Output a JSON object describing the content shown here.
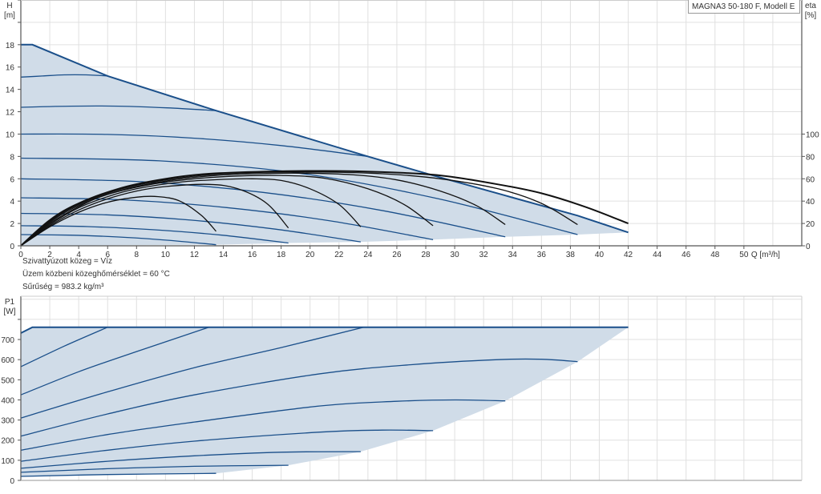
{
  "chart_data": [
    {
      "type": "line",
      "title": "MAGNA3 50-180 F, Modell E",
      "xlabel": "Q [m³/h]",
      "ylabel_top": "H",
      "ylabel_unit": "[m]",
      "y2label_top": "eta",
      "y2label_unit": "[%]",
      "xlim": [
        0,
        54
      ],
      "ylim": [
        0,
        22
      ],
      "y2lim": [
        0,
        220
      ],
      "grid": true,
      "x_ticks": [
        "0",
        "2",
        "4",
        "6",
        "8",
        "10",
        "12",
        "14",
        "16",
        "18",
        "20",
        "22",
        "24",
        "26",
        "28",
        "30",
        "32",
        "34",
        "36",
        "38",
        "40",
        "42",
        "44",
        "46",
        "48",
        "50"
      ],
      "y_ticks": [
        "0",
        "2",
        "4",
        "6",
        "8",
        "10",
        "12",
        "14",
        "16",
        "18"
      ],
      "y2_ticks": [
        "0",
        "20",
        "40",
        "60",
        "80",
        "100"
      ],
      "colors": {
        "head": "#1a4f8a",
        "eta": "#111111",
        "area": "#d0dce8"
      },
      "head_max": [
        [
          0,
          18
        ],
        [
          0.8,
          18
        ],
        [
          6,
          15.2
        ],
        [
          13.5,
          12.1
        ],
        [
          24,
          8.0
        ],
        [
          28.5,
          6.3
        ],
        [
          33.5,
          4.5
        ],
        [
          38.5,
          2.7
        ],
        [
          42,
          1.2
        ]
      ],
      "head_min": [
        [
          0,
          0
        ],
        [
          13.5,
          0.1
        ],
        [
          18.5,
          0.25
        ],
        [
          23.5,
          0.35
        ],
        [
          28.5,
          0.55
        ],
        [
          33.5,
          0.8
        ],
        [
          38.5,
          1.0
        ],
        [
          42,
          1.2
        ]
      ],
      "head_curves": [
        [
          [
            0,
            15.1
          ],
          [
            1.5,
            15.2
          ],
          [
            3,
            15.3
          ],
          [
            4.5,
            15.3
          ],
          [
            6,
            15.2
          ]
        ],
        [
          [
            0,
            12.4
          ],
          [
            3.4,
            12.5
          ],
          [
            6.75,
            12.5
          ],
          [
            10.1,
            12.35
          ],
          [
            13.5,
            12.1
          ]
        ],
        [
          [
            0,
            10
          ],
          [
            6,
            9.97
          ],
          [
            12,
            9.63
          ],
          [
            18,
            8.97
          ],
          [
            24,
            8.0
          ]
        ],
        [
          [
            0,
            7.85
          ],
          [
            9.6,
            7.6
          ],
          [
            19.25,
            6.5
          ],
          [
            28.9,
            4.2
          ],
          [
            38.5,
            1.0
          ]
        ],
        [
          [
            0,
            6.0
          ],
          [
            8.4,
            5.73
          ],
          [
            16.75,
            4.78
          ],
          [
            25.1,
            3.13
          ],
          [
            33.5,
            0.8
          ]
        ],
        [
          [
            0,
            4.3
          ],
          [
            7.1,
            4.11
          ],
          [
            14.25,
            3.42
          ],
          [
            21.4,
            2.23
          ],
          [
            28.5,
            0.55
          ]
        ],
        [
          [
            0,
            2.9
          ],
          [
            5.9,
            2.77
          ],
          [
            11.75,
            2.3
          ],
          [
            17.6,
            1.49
          ],
          [
            23.5,
            0.35
          ]
        ],
        [
          [
            0,
            1.8
          ],
          [
            4.6,
            1.72
          ],
          [
            9.25,
            1.43
          ],
          [
            13.9,
            0.95
          ],
          [
            18.5,
            0.25
          ]
        ],
        [
          [
            0,
            1.0
          ],
          [
            3.4,
            0.95
          ],
          [
            6.75,
            0.79
          ],
          [
            10.1,
            0.5
          ],
          [
            13.5,
            0.1
          ]
        ]
      ],
      "eta_curves": [
        [
          [
            0,
            0
          ],
          [
            2,
            17
          ],
          [
            4,
            30
          ],
          [
            6,
            39
          ],
          [
            8,
            43.5
          ],
          [
            9.5,
            44
          ],
          [
            11,
            40
          ],
          [
            12.5,
            27
          ],
          [
            13.5,
            13
          ]
        ],
        [
          [
            0,
            0
          ],
          [
            2,
            18
          ],
          [
            4,
            32
          ],
          [
            6,
            42
          ],
          [
            8,
            49
          ],
          [
            10,
            53
          ],
          [
            13,
            55
          ],
          [
            15,
            51
          ],
          [
            17,
            38
          ],
          [
            18.5,
            16
          ]
        ],
        [
          [
            0,
            0
          ],
          [
            2,
            19
          ],
          [
            4,
            34
          ],
          [
            6,
            44
          ],
          [
            8,
            51
          ],
          [
            11,
            57
          ],
          [
            14,
            59.5
          ],
          [
            16,
            60
          ],
          [
            18,
            58.5
          ],
          [
            20,
            51
          ],
          [
            22,
            37
          ],
          [
            23.5,
            17
          ]
        ],
        [
          [
            0,
            0
          ],
          [
            2,
            20
          ],
          [
            4,
            35
          ],
          [
            6,
            46
          ],
          [
            9,
            55
          ],
          [
            12,
            60
          ],
          [
            15,
            62.5
          ],
          [
            18,
            63
          ],
          [
            21,
            60.5
          ],
          [
            24,
            51
          ],
          [
            26.5,
            37
          ],
          [
            28.5,
            18
          ]
        ],
        [
          [
            0,
            0
          ],
          [
            2,
            21
          ],
          [
            4,
            36
          ],
          [
            7,
            50
          ],
          [
            10,
            58
          ],
          [
            13,
            62.5
          ],
          [
            16,
            64.5
          ],
          [
            19.5,
            65
          ],
          [
            23,
            63.5
          ],
          [
            26,
            59
          ],
          [
            29,
            49
          ],
          [
            31.5,
            36
          ],
          [
            33.5,
            19
          ]
        ],
        [
          [
            0,
            0
          ],
          [
            2,
            22
          ],
          [
            4,
            37
          ],
          [
            7,
            51
          ],
          [
            10,
            59
          ],
          [
            13,
            63.5
          ],
          [
            16,
            65.5
          ],
          [
            20.5,
            66
          ],
          [
            25,
            64.5
          ],
          [
            29,
            60
          ],
          [
            33,
            51
          ],
          [
            36,
            38
          ],
          [
            38.5,
            19
          ]
        ],
        [
          [
            0,
            0
          ],
          [
            2,
            23
          ],
          [
            4,
            38
          ],
          [
            7,
            52
          ],
          [
            10,
            60
          ],
          [
            13,
            64.5
          ],
          [
            17,
            66.5
          ],
          [
            21,
            67
          ],
          [
            25,
            66
          ],
          [
            29,
            63
          ],
          [
            33,
            55
          ],
          [
            36,
            47
          ],
          [
            39,
            35
          ],
          [
            42,
            20
          ]
        ]
      ]
    },
    {
      "type": "line",
      "ylabel_top": "P1",
      "ylabel_unit": "[W]",
      "xlim": [
        0,
        54
      ],
      "ylim": [
        0,
        915
      ],
      "grid": true,
      "y_ticks": [
        "0",
        "100",
        "200",
        "300",
        "400",
        "500",
        "600",
        "700"
      ],
      "colors": {
        "power": "#1a4f8a",
        "area": "#d0dce8"
      },
      "power_max": [
        [
          0,
          732
        ],
        [
          0.8,
          761
        ],
        [
          42,
          761
        ]
      ],
      "power_min": [
        [
          0,
          20
        ],
        [
          13.5,
          35
        ],
        [
          18.5,
          75
        ],
        [
          23.5,
          143
        ],
        [
          28.5,
          247
        ],
        [
          33.5,
          395
        ],
        [
          38.5,
          590
        ],
        [
          42,
          761
        ]
      ],
      "power_curves": [
        [
          [
            0,
            565
          ],
          [
            3,
            667
          ],
          [
            6,
            761
          ]
        ],
        [
          [
            0,
            425
          ],
          [
            4,
            540
          ],
          [
            8,
            640
          ],
          [
            13,
            761
          ]
        ],
        [
          [
            0,
            310
          ],
          [
            6,
            440
          ],
          [
            12,
            560
          ],
          [
            18,
            660
          ],
          [
            23.7,
            761
          ]
        ],
        [
          [
            0,
            220
          ],
          [
            6,
            330
          ],
          [
            12,
            425
          ],
          [
            20.7,
            530
          ],
          [
            27,
            575
          ],
          [
            33,
            600
          ],
          [
            36,
            602
          ],
          [
            38.5,
            590
          ]
        ],
        [
          [
            0,
            150
          ],
          [
            6,
            228
          ],
          [
            12,
            290
          ],
          [
            20.7,
            370
          ],
          [
            26,
            393
          ],
          [
            30,
            400
          ],
          [
            33.5,
            395
          ]
        ],
        [
          [
            0,
            95
          ],
          [
            6,
            150
          ],
          [
            12,
            195
          ],
          [
            20.7,
            240
          ],
          [
            25,
            250
          ],
          [
            28.5,
            247
          ]
        ],
        [
          [
            0,
            60
          ],
          [
            6,
            95
          ],
          [
            12,
            122
          ],
          [
            18,
            140
          ],
          [
            23.5,
            143
          ]
        ],
        [
          [
            0,
            40
          ],
          [
            6,
            58
          ],
          [
            12,
            70
          ],
          [
            18.5,
            75
          ]
        ],
        [
          [
            0,
            20
          ],
          [
            6,
            29
          ],
          [
            13.5,
            35
          ]
        ]
      ]
    }
  ],
  "info": {
    "medium": "Szivattyúzott közeg = Víz",
    "temperature": "Üzem közbeni közeghőmérséklet = 60 °C",
    "density": "Sűrűség = 983.2 kg/m³"
  }
}
